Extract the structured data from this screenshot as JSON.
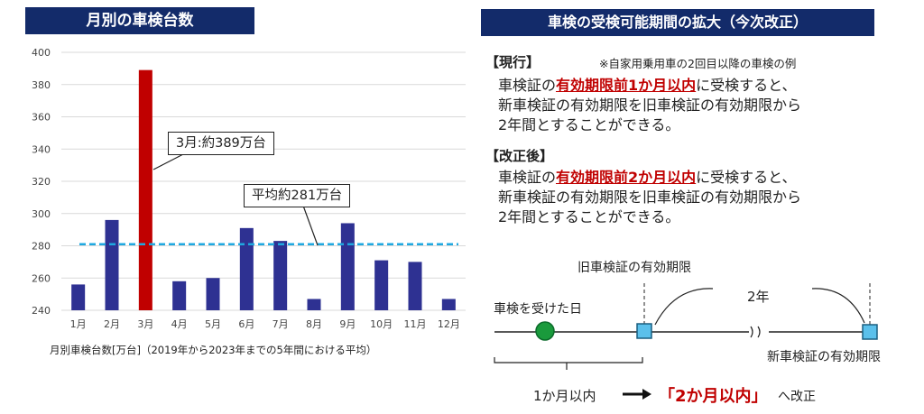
{
  "left_panel": {
    "title": "月別の車検台数",
    "caption": "月別車検台数[万台]（2019年から2023年までの5年間における平均）",
    "callout_max": "3月:約389万台",
    "callout_avg": "平均約281万台"
  },
  "chart_data": {
    "type": "bar",
    "title": "月別の車検台数",
    "categories": [
      "1月",
      "2月",
      "3月",
      "4月",
      "5月",
      "6月",
      "7月",
      "8月",
      "9月",
      "10月",
      "11月",
      "12月"
    ],
    "values": [
      256,
      296,
      389,
      258,
      260,
      291,
      283,
      247,
      294,
      271,
      270,
      247
    ],
    "highlight_index": 2,
    "average": 281,
    "ylim": [
      240,
      400
    ],
    "yticks": [
      240,
      260,
      280,
      300,
      320,
      340,
      360,
      380,
      400
    ],
    "grid": true,
    "colors": {
      "bar": "#2e3192",
      "highlight": "#c00000",
      "average_line": "#1fa8e0"
    }
  },
  "right_panel": {
    "title": "車検の受検可能期間の拡大（今次改正）",
    "current": {
      "heading": "【現行】",
      "note": "※自家用乗用車の2回目以降の車検の例",
      "line1_pre": "車検証の",
      "line1_em": "有効期限前1か月以内",
      "line1_post": "に受検すると、",
      "line2": "新車検証の有効期限を旧車検証の有効期限から",
      "line3": "2年間とすることができる。"
    },
    "revised": {
      "heading": "【改正後】",
      "line1_pre": "車検証の",
      "line1_em": "有効期限前2か月以内",
      "line1_post": "に受検すると、",
      "line2": "新車検証の有効期限を旧車検証の有効期限から",
      "line3": "2年間とすることができる。"
    },
    "diagram": {
      "old_expiry_label": "旧車検証の有効期限",
      "inspection_label": "車検を受けた日",
      "period_label": "2年",
      "new_expiry_label": "新車検証の有効期限",
      "bottom_pre": "1か月以内",
      "bottom_em": "「2か月以内」",
      "bottom_post": "へ改正",
      "colors": {
        "dot": "#1a9a3c",
        "square": "#5bc0eb"
      }
    }
  }
}
